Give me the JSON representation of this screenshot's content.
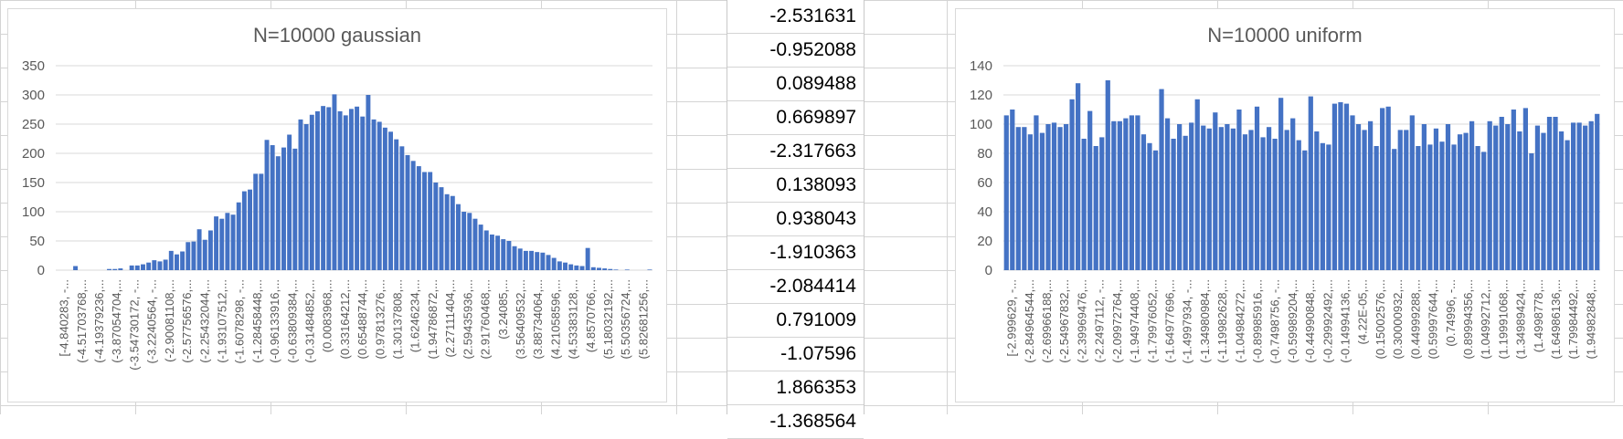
{
  "chart_data": [
    {
      "type": "bar",
      "title": "N=10000 gaussian",
      "ylim": [
        0,
        350
      ],
      "yticks": [
        0,
        50,
        100,
        150,
        200,
        250,
        300,
        350
      ],
      "grid": true,
      "bar_color": "#4472C4",
      "category_labels": [
        "[-4.840283, -...",
        "(-4.51703768,...",
        "(-4.19379236,...",
        "(-3.87054704,...",
        "(-3.54730172, -...",
        "(-3.2240564, -...",
        "(-2.90081108,...",
        "(-2.57756576,...",
        "(-2.25432044,...",
        "(-1.93107512,...",
        "(-1.6078298, -...",
        "(-1.28458448,...",
        "(-0.96133916,...",
        "(-0.63809384,...",
        "(-0.31484852,...",
        "(0.0083968,...",
        "(0.33164212,...",
        "(0.65488744,...",
        "(0.97813276,...",
        "(1.30137808,...",
        "(1.6246234,...",
        "(1.94786872,...",
        "(2.27111404,...",
        "(2.59435936,...",
        "(2.91760468,...",
        "(3.24085,...",
        "(3.56409532,...",
        "(3.88734064,...",
        "(4.21058596,...",
        "(4.53383128,...",
        "(4.8570766,...",
        "(5.18032192,...",
        "(5.50356724,...",
        "(5.82681256,..."
      ],
      "values": [
        0,
        0,
        0,
        7,
        0,
        0,
        0,
        0,
        0,
        2,
        2,
        3,
        0,
        8,
        8,
        10,
        13,
        17,
        15,
        18,
        33,
        27,
        32,
        48,
        49,
        70,
        52,
        68,
        92,
        88,
        98,
        95,
        116,
        135,
        138,
        165,
        165,
        223,
        214,
        195,
        210,
        232,
        208,
        258,
        250,
        266,
        272,
        281,
        279,
        301,
        272,
        265,
        276,
        280,
        263,
        300,
        258,
        254,
        244,
        237,
        224,
        212,
        197,
        187,
        178,
        168,
        168,
        150,
        142,
        130,
        127,
        113,
        100,
        98,
        88,
        78,
        68,
        61,
        59,
        53,
        50,
        41,
        37,
        33,
        33,
        31,
        30,
        26,
        21,
        15,
        13,
        10,
        8,
        7,
        38,
        5,
        4,
        3,
        2,
        1,
        0,
        1,
        0,
        0,
        0,
        1
      ]
    },
    {
      "type": "bar",
      "title": "N=10000 uniform",
      "ylim": [
        0,
        140
      ],
      "yticks": [
        0,
        20,
        40,
        60,
        80,
        100,
        120,
        140
      ],
      "grid": true,
      "bar_color": "#4472C4",
      "category_labels": [
        "[-2.999629, -...",
        "(-2.84964544,...",
        "(-2.69966188,...",
        "(-2.54967832,...",
        "(-2.39969476,...",
        "(-2.2497112, -...",
        "(-2.09972764,...",
        "(-1.94974408,...",
        "(-1.79976052,...",
        "(-1.64977696,...",
        "(-1.4997934, -...",
        "(-1.34980984,...",
        "(-1.19982628,...",
        "(-1.04984272,...",
        "(-0.89985916,...",
        "(-0.7498756, -...",
        "(-0.59989204,...",
        "(-0.44990848,...",
        "(-0.29992492,...",
        "(-0.14994136,...",
        "(4.22E-05,...",
        "(0.15002576,...",
        "(0.30000932,...",
        "(0.44999288,...",
        "(0.59997644,...",
        "(0.74996, -...",
        "(0.89994356,...",
        "(1.04992712,...",
        "(1.19991068,...",
        "(1.34989424,...",
        "(1.4998778,...",
        "(1.64986136,...",
        "(1.79984492,...",
        "(1.94982848,..."
      ],
      "values": [
        106,
        110,
        98,
        98,
        93,
        106,
        94,
        100,
        101,
        98,
        100,
        117,
        128,
        90,
        109,
        85,
        91,
        130,
        102,
        102,
        104,
        106,
        106,
        93,
        87,
        82,
        124,
        104,
        90,
        100,
        92,
        101,
        117,
        99,
        97,
        108,
        98,
        100,
        97,
        110,
        93,
        96,
        112,
        91,
        98,
        90,
        118,
        96,
        104,
        89,
        82,
        119,
        95,
        87,
        86,
        114,
        115,
        114,
        106,
        100,
        96,
        102,
        85,
        111,
        112,
        83,
        96,
        96,
        106,
        85,
        100,
        86,
        97,
        88,
        100,
        86,
        93,
        94,
        102,
        85,
        81,
        102,
        99,
        105,
        100,
        110,
        95,
        111,
        80,
        99,
        94,
        105,
        105,
        95,
        89,
        101,
        101,
        99,
        102,
        107
      ]
    }
  ],
  "value_column": [
    "-2.531631",
    "-0.952088",
    "0.089488",
    "0.669897",
    "-2.317663",
    "0.138093",
    "0.938043",
    "-1.910363",
    "-2.084414",
    "0.791009",
    "-1.07596",
    "1.866353",
    "-1.368564"
  ]
}
